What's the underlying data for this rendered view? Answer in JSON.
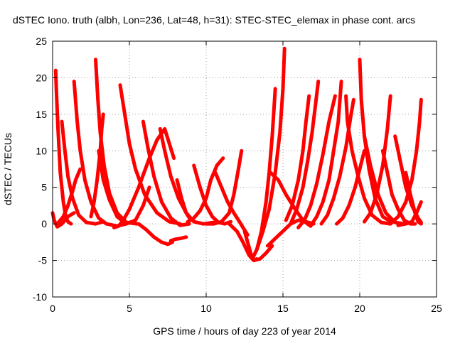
{
  "chart_data": {
    "type": "scatter",
    "title": "dSTEC Iono. truth (albh, Lon=236, Lat=48, h=31): STEC-STEC_elemax in phase cont. arcs",
    "xlabel": "GPS time / hours of day 223 of year 2014",
    "ylabel": "dSTEC  / TECUs",
    "xlim": [
      0,
      25
    ],
    "ylim": [
      -10,
      25
    ],
    "x_ticks": [
      "0",
      "5",
      "10",
      "15",
      "20",
      "25"
    ],
    "y_ticks": [
      "-10",
      "-5",
      "0",
      "5",
      "10",
      "15",
      "20",
      "25"
    ],
    "grid": true,
    "marker": "+",
    "color": "#ff0000",
    "series": [
      {
        "x": [
          0,
          0.1,
          0.3,
          0.6,
          1.0,
          1.4
        ],
        "y": [
          1.5,
          0.5,
          -0.4,
          0,
          1,
          1.5
        ]
      },
      {
        "x": [
          0.2,
          0.25,
          0.35,
          0.5,
          0.7,
          0.85,
          1.0,
          1.2
        ],
        "y": [
          21,
          18,
          13,
          7,
          3,
          1,
          0.3,
          0
        ]
      },
      {
        "x": [
          0.6,
          0.8,
          1.0,
          1.3,
          1.7,
          2.2,
          2.8,
          3.3
        ],
        "y": [
          14,
          10,
          6.5,
          3.5,
          1.2,
          0.2,
          0,
          0.3
        ]
      },
      {
        "x": [
          1.4,
          1.6,
          1.8,
          2.1,
          2.5,
          3.0,
          3.5,
          4.2,
          4.8
        ],
        "y": [
          19.5,
          14,
          10,
          6,
          3,
          0.8,
          0,
          -0.3,
          0
        ]
      },
      {
        "x": [
          0.3,
          0.7,
          1.0,
          1.3,
          1.5,
          1.7,
          1.8
        ],
        "y": [
          0,
          1,
          2.5,
          4.5,
          6,
          7,
          7.5
        ]
      },
      {
        "x": [
          2.8,
          2.95,
          3.1,
          3.35,
          3.7,
          4.2,
          4.8,
          5.5
        ],
        "y": [
          22.5,
          17,
          12.5,
          8,
          4.2,
          1.5,
          0.2,
          0
        ]
      },
      {
        "x": [
          3.0,
          3.3,
          3.7,
          4.2,
          4.8,
          5.4,
          5.9,
          6.3
        ],
        "y": [
          10,
          6,
          3.3,
          1,
          0,
          0.5,
          2.5,
          5
        ]
      },
      {
        "x": [
          2.5,
          2.7,
          2.9,
          3.1,
          3.2,
          3.3
        ],
        "y": [
          1,
          3,
          6,
          10,
          13,
          15
        ]
      },
      {
        "x": [
          4.4,
          4.7,
          5.0,
          5.4,
          6.0,
          6.8,
          7.6,
          8.3
        ],
        "y": [
          19,
          15,
          11,
          7.5,
          4,
          1.5,
          0.3,
          0
        ]
      },
      {
        "x": [
          4.0,
          4.3,
          4.6,
          5.0,
          5.6,
          6.3,
          6.8,
          7.3,
          7.9
        ],
        "y": [
          -0.5,
          -0.3,
          0.5,
          2,
          5,
          9,
          11.5,
          13,
          9
        ]
      },
      {
        "x": [
          5.9,
          6.2,
          6.6,
          7.1,
          7.7,
          8.3,
          8.9
        ],
        "y": [
          14,
          10.5,
          6.5,
          3,
          0.8,
          -0.2,
          0
        ]
      },
      {
        "x": [
          5.6,
          6.1,
          6.6,
          7.1,
          7.5,
          7.8
        ],
        "y": [
          0,
          -0.8,
          -1.8,
          -2.5,
          -2.8,
          -2.5
        ]
      },
      {
        "x": [
          7.0,
          7.3,
          7.7,
          8.2,
          8.7,
          9.2,
          9.8,
          10.5
        ],
        "y": [
          13,
          10,
          6.5,
          3.5,
          1.5,
          0.3,
          0,
          0.2
        ]
      },
      {
        "x": [
          7.7,
          8.0,
          8.3,
          8.7
        ],
        "y": [
          -2.3,
          -2.1,
          -2.0,
          -1.8
        ]
      },
      {
        "x": [
          8.1,
          8.4,
          8.7,
          9.0
        ],
        "y": [
          6,
          3.5,
          1.5,
          0.5
        ]
      },
      {
        "x": [
          8.8,
          9.2,
          9.6,
          10.0,
          10.3,
          10.7,
          11.1
        ],
        "y": [
          0.3,
          0.8,
          1.8,
          3.5,
          6,
          8,
          9
        ]
      },
      {
        "x": [
          9.2,
          9.6,
          10.0,
          10.4,
          10.8,
          11.2,
          11.6
        ],
        "y": [
          8,
          5,
          2.5,
          1,
          0.2,
          0,
          0.3
        ]
      },
      {
        "x": [
          10.6,
          11.0,
          11.4,
          11.8,
          12.2,
          12.4,
          12.7
        ],
        "y": [
          7,
          5,
          3,
          1.5,
          0.2,
          -0.5,
          -1.5
        ]
      },
      {
        "x": [
          10.0,
          10.5,
          11.0,
          11.5,
          11.8,
          12.1,
          12.3
        ],
        "y": [
          0,
          0,
          0.3,
          1.5,
          4,
          7.5,
          10
        ]
      },
      {
        "x": [
          11.5,
          12.0,
          12.4,
          12.8,
          13.1,
          13.5,
          13.9,
          14.3
        ],
        "y": [
          0,
          -1,
          -2.5,
          -4.3,
          -5,
          -4.8,
          -4,
          -3
        ]
      },
      {
        "x": [
          12.5,
          12.7,
          12.9,
          13.1,
          13.3
        ],
        "y": [
          -1,
          -2.5,
          -4,
          -5,
          -4.8
        ]
      },
      {
        "x": [
          13.0,
          13.3,
          13.6,
          13.9,
          14.1,
          14.3,
          14.5
        ],
        "y": [
          -4.8,
          -3.5,
          -1,
          3,
          7,
          12,
          18.5
        ]
      },
      {
        "x": [
          13.3,
          13.7,
          14.1,
          14.5,
          14.8,
          15.0,
          15.1
        ],
        "y": [
          -3.5,
          -1,
          2,
          7,
          12.5,
          18.5,
          24
        ]
      },
      {
        "x": [
          14.0,
          14.5,
          15.0,
          15.5,
          16.0,
          16.5,
          17.0
        ],
        "y": [
          -3,
          -2,
          -1,
          0,
          0.5,
          0.3,
          0
        ]
      },
      {
        "x": [
          14.2,
          14.7,
          15.2,
          15.8,
          16.3,
          16.6,
          16.8
        ],
        "y": [
          7,
          6,
          4,
          2,
          0.5,
          0,
          -0.3
        ]
      },
      {
        "x": [
          15.2,
          15.6,
          16.0,
          16.3,
          16.5,
          16.7
        ],
        "y": [
          0.5,
          2.5,
          6,
          10,
          14,
          17.5
        ]
      },
      {
        "x": [
          15.5,
          15.9,
          16.3,
          16.6,
          16.9,
          17.1,
          17.3
        ],
        "y": [
          0,
          2,
          5,
          8.5,
          12.5,
          16,
          19.5
        ]
      },
      {
        "x": [
          16.0,
          16.4,
          16.8,
          17.2,
          17.6,
          18.0,
          18.4
        ],
        "y": [
          -0.5,
          0.5,
          2.5,
          5.5,
          9.5,
          14,
          17.5
        ]
      },
      {
        "x": [
          16.8,
          17.2,
          17.6,
          18.0,
          18.3,
          18.6,
          18.8
        ],
        "y": [
          -0.3,
          1,
          3,
          6,
          10,
          14,
          19.5
        ]
      },
      {
        "x": [
          17.5,
          17.9,
          18.3,
          18.7,
          19.1,
          19.4,
          19.6
        ],
        "y": [
          0,
          1.2,
          3.5,
          6.5,
          10.5,
          14.5,
          17
        ]
      },
      {
        "x": [
          19.1,
          19.2,
          19.5,
          19.9,
          20.3,
          20.8,
          21.4,
          22
        ],
        "y": [
          17.5,
          14,
          10,
          6.5,
          3.5,
          1.2,
          0.2,
          0
        ]
      },
      {
        "x": [
          18.5,
          18.9,
          19.3,
          19.7,
          20.0,
          20.3
        ],
        "y": [
          0,
          0.8,
          2.5,
          5,
          7.5,
          10
        ]
      },
      {
        "x": [
          20.0,
          20.1,
          20.3,
          20.6,
          21.0,
          21.5,
          22.1
        ],
        "y": [
          22.5,
          17,
          12,
          7.5,
          3.5,
          1,
          0.2
        ]
      },
      {
        "x": [
          20.3,
          20.7,
          21.1,
          21.5,
          21.8,
          22.0
        ],
        "y": [
          0.3,
          1.5,
          4,
          8,
          13,
          17.5
        ]
      },
      {
        "x": [
          20.3,
          20.7,
          21.2,
          21.7,
          22.3,
          22.9
        ],
        "y": [
          12,
          8,
          4,
          1.5,
          0.2,
          0
        ]
      },
      {
        "x": [
          21.5,
          21.8,
          22.1,
          22.5,
          22.9,
          23.3,
          23.6
        ],
        "y": [
          10,
          7,
          4,
          2,
          0.5,
          0,
          0
        ]
      },
      {
        "x": [
          22.3,
          22.6,
          23.0,
          23.4,
          23.8,
          24.0
        ],
        "y": [
          12,
          9,
          5,
          2.5,
          0.8,
          0.2
        ]
      },
      {
        "x": [
          22.0,
          22.5,
          23.0,
          23.4,
          23.7,
          23.9,
          24.0
        ],
        "y": [
          0,
          1,
          3,
          6,
          10,
          14,
          17
        ]
      },
      {
        "x": [
          22.5,
          23.0,
          23.4,
          23.7,
          24.0
        ],
        "y": [
          -0.2,
          0,
          0.3,
          1.5,
          3
        ]
      },
      {
        "x": [
          23.0,
          23.3,
          23.6,
          23.8,
          24.0
        ],
        "y": [
          7,
          4,
          1.5,
          0.3,
          0
        ]
      }
    ]
  }
}
